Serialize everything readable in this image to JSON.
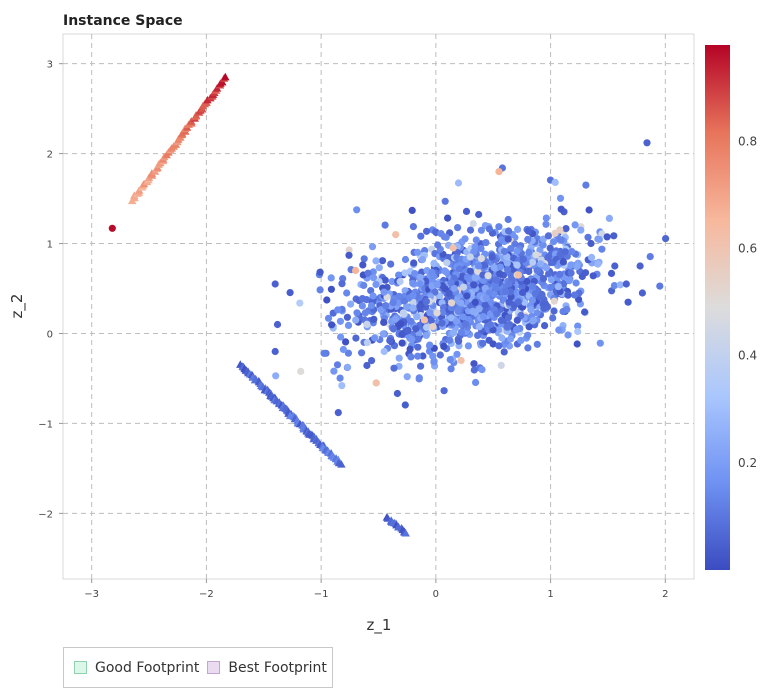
{
  "chart_data": {
    "type": "scatter",
    "title": "Instance Space",
    "xlabel": "z_1",
    "ylabel": "z_2",
    "xlim": [
      -3.25,
      2.25
    ],
    "ylim": [
      -2.73,
      3.33
    ],
    "xticks": [
      -3,
      -2,
      -1,
      0,
      1,
      2
    ],
    "yticks": [
      -2,
      -1,
      0,
      1,
      2,
      3
    ],
    "xtick_labels": [
      "−3",
      "−2",
      "−1",
      "0",
      "1",
      "2"
    ],
    "ytick_labels": [
      "−2",
      "−1",
      "0",
      "1",
      "2",
      "3"
    ],
    "grid": true,
    "colorbar": {
      "range": [
        0,
        0.98
      ],
      "ticks": [
        0.2,
        0.4,
        0.6,
        0.8
      ],
      "tick_labels": [
        "0.2",
        "0.4",
        "0.6",
        "0.8"
      ],
      "colormap": "coolwarm",
      "colors": [
        "#3b4cc0",
        "#6f92f3",
        "#aac7fd",
        "#dddcdc",
        "#f7b89c",
        "#e7745b",
        "#b40426"
      ]
    },
    "series": [
      {
        "marker": "circle",
        "cluster": {
          "center": [
            0.3,
            0.45
          ],
          "spread": [
            0.5,
            0.35
          ],
          "correlation": 0.35,
          "count": 1400,
          "value_mean": 0.13,
          "value_spread": 0.08
        },
        "points": [
          {
            "x": -2.82,
            "y": 1.17,
            "v": 0.97
          },
          {
            "x": 1.84,
            "y": 2.12,
            "v": 0.05
          },
          {
            "x": 0.58,
            "y": 1.84,
            "v": 0.09
          },
          {
            "x": 0.55,
            "y": 1.8,
            "v": 0.66
          },
          {
            "x": 1.04,
            "y": 1.68,
            "v": 0.3
          },
          {
            "x": -1.4,
            "y": 0.55,
            "v": 0.05
          },
          {
            "x": -1.38,
            "y": 0.1,
            "v": 0.05
          },
          {
            "x": -1.4,
            "y": -0.2,
            "v": 0.05
          },
          {
            "x": -0.85,
            "y": -0.88,
            "v": 0.05
          },
          {
            "x": -0.82,
            "y": -0.58,
            "v": 0.3
          },
          {
            "x": -0.52,
            "y": -0.55,
            "v": 0.62
          },
          {
            "x": 1.56,
            "y": 0.75,
            "v": 0.05
          },
          {
            "x": 1.78,
            "y": 0.75,
            "v": 0.05
          },
          {
            "x": 1.8,
            "y": 0.45,
            "v": 0.05
          },
          {
            "x": 1.66,
            "y": 0.55,
            "v": 0.05
          },
          {
            "x": -0.7,
            "y": 0.7,
            "v": 0.66
          },
          {
            "x": -0.35,
            "y": 1.1,
            "v": 0.62
          },
          {
            "x": 0.15,
            "y": 0.95,
            "v": 0.62
          },
          {
            "x": 0.72,
            "y": 0.65,
            "v": 0.62
          },
          {
            "x": -0.1,
            "y": 0.15,
            "v": 0.62
          },
          {
            "x": 0.22,
            "y": -0.3,
            "v": 0.62
          },
          {
            "x": -0.45,
            "y": -0.2,
            "v": 0.3
          },
          {
            "x": 0.3,
            "y": 0.85,
            "v": 0.42
          },
          {
            "x": -0.6,
            "y": 0.1,
            "v": 0.42
          }
        ]
      },
      {
        "marker": "triangle",
        "lines": [
          {
            "from": [
              -2.65,
              1.48
            ],
            "to": [
              -1.83,
              2.85
            ],
            "count": 60,
            "v_from": 0.66,
            "v_to": 0.92
          },
          {
            "from": [
              -1.7,
              -0.35
            ],
            "to": [
              -0.83,
              -1.45
            ],
            "count": 90,
            "v_from": 0.05,
            "v_to": 0.1
          },
          {
            "from": [
              -0.42,
              -2.05
            ],
            "to": [
              -0.26,
              -2.22
            ],
            "count": 15,
            "v_from": 0.05,
            "v_to": 0.08
          }
        ]
      }
    ],
    "legend": {
      "position": "bottom-left",
      "items": [
        {
          "label": "Good Footprint",
          "fill": "#dcf6e8",
          "stroke": "#8fd2b0"
        },
        {
          "label": "Best Footprint",
          "fill": "#eadbf0",
          "stroke": "#c3a5d1"
        }
      ]
    }
  }
}
